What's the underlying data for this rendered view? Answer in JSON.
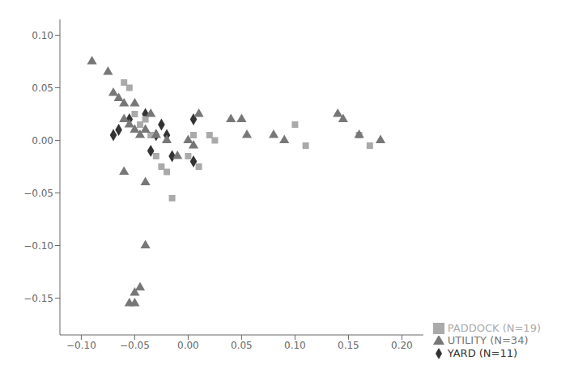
{
  "chart_data": {
    "type": "scatter",
    "series": [
      {
        "name": "YARD (N=11)",
        "color": "#333333",
        "marker": "diamond",
        "x": [
          -0.07,
          -0.055,
          -0.065,
          -0.04,
          -0.03,
          -0.025,
          -0.02,
          -0.035,
          -0.015,
          0.005,
          0.005
        ],
        "values": [
          0.005,
          0.02,
          0.01,
          0.025,
          0.005,
          0.015,
          0.005,
          -0.01,
          -0.015,
          0.02,
          -0.02
        ]
      },
      {
        "name": "PADDOCK (N=19)",
        "color": "#aaaaaa",
        "marker": "square",
        "x": [
          -0.06,
          -0.055,
          -0.05,
          -0.045,
          -0.04,
          -0.035,
          -0.03,
          -0.025,
          -0.02,
          -0.015,
          0.0,
          0.005,
          0.01,
          0.02,
          0.025,
          0.1,
          0.11,
          0.16,
          0.17
        ],
        "values": [
          0.055,
          0.05,
          0.025,
          0.015,
          0.02,
          0.005,
          -0.015,
          -0.025,
          -0.03,
          -0.055,
          -0.015,
          0.005,
          -0.025,
          0.005,
          0.0,
          0.015,
          -0.005,
          0.005,
          -0.005
        ]
      },
      {
        "name": "UTILITY (N=34)",
        "color": "#777777",
        "marker": "triangle",
        "x": [
          -0.09,
          -0.075,
          -0.07,
          -0.065,
          -0.06,
          -0.06,
          -0.055,
          -0.05,
          -0.05,
          -0.045,
          -0.04,
          -0.035,
          -0.03,
          -0.02,
          -0.01,
          0.005,
          0.01,
          0.04,
          0.05,
          0.055,
          0.08,
          0.09,
          0.14,
          0.145,
          0.16,
          0.18,
          -0.04,
          -0.04,
          -0.045,
          -0.05,
          -0.05,
          -0.055,
          -0.06,
          0.0
        ],
        "values": [
          0.075,
          0.065,
          0.045,
          0.04,
          0.035,
          0.02,
          0.015,
          0.035,
          0.01,
          0.005,
          0.01,
          0.025,
          0.005,
          0.0,
          -0.015,
          -0.005,
          0.025,
          0.02,
          0.02,
          0.005,
          0.005,
          0.0,
          0.025,
          0.02,
          0.005,
          0.0,
          -0.04,
          -0.1,
          -0.14,
          -0.145,
          -0.155,
          -0.155,
          -0.03,
          0.0
        ]
      }
    ],
    "xlim": [
      -0.12,
      0.22
    ],
    "ylim": [
      -0.185,
      0.115
    ],
    "xticks": [
      {
        "value": -0.1,
        "label": "−0.10"
      },
      {
        "value": -0.05,
        "label": "−0.05"
      },
      {
        "value": 0.0,
        "label": "0.00"
      },
      0.05,
      {
        "value": 0.1,
        "label": "0.10"
      },
      0.15,
      {
        "value": 0.2,
        "label": "0.20"
      }
    ],
    "yticks": [
      {
        "value": -0.15,
        "label": "−0.15"
      },
      {
        "value": -0.1,
        "label": "−0.10"
      },
      {
        "value": -0.05,
        "label": "−0.05"
      },
      {
        "value": 0.0,
        "label": "0.00"
      },
      0.05,
      {
        "value": 0.1,
        "label": "0.10"
      }
    ],
    "grid": false,
    "legend": "lower right"
  }
}
